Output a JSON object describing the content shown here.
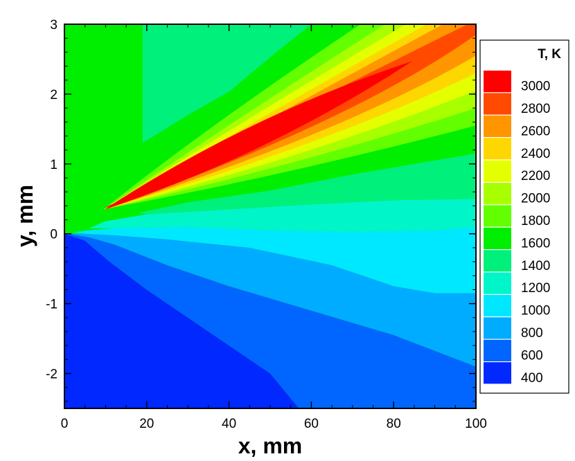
{
  "chart_data": {
    "type": "heatmap",
    "title": "",
    "xlabel": "x, mm",
    "ylabel": "y, mm",
    "xlim": [
      0,
      100
    ],
    "ylim": [
      -2.5,
      3
    ],
    "x_ticks": [
      0,
      20,
      40,
      60,
      80,
      100
    ],
    "x_tick_labels": [
      "0",
      "20",
      "40",
      "60",
      "80",
      "100"
    ],
    "y_ticks": [
      -2,
      -1,
      0,
      1,
      2,
      3
    ],
    "y_tick_labels": [
      "-2",
      "-1",
      "0",
      "1",
      "2",
      "3"
    ],
    "grid": false,
    "legend": {
      "title": "T, K",
      "placement": "right",
      "levels": [
        3000,
        2800,
        2600,
        2400,
        2200,
        2000,
        1800,
        1600,
        1400,
        1200,
        1000,
        800,
        600,
        400
      ],
      "labels": [
        "3000",
        "2800",
        "2600",
        "2400",
        "2200",
        "2000",
        "1800",
        "1600",
        "1400",
        "1200",
        "1000",
        "800",
        "600",
        "400"
      ],
      "colors": [
        "#ff0000",
        "#ff4a00",
        "#ff9600",
        "#ffd700",
        "#e4ff00",
        "#a8ff00",
        "#63ff00",
        "#00ee00",
        "#00f07c",
        "#00f5c9",
        "#00e8ff",
        "#00acff",
        "#0066ff",
        "#0028ff"
      ]
    },
    "regions": [
      {
        "level": 400,
        "polygon": [
          [
            0,
            -2.5
          ],
          [
            0,
            0
          ],
          [
            2,
            0
          ],
          [
            5,
            -0.1
          ],
          [
            11,
            -0.4
          ],
          [
            20,
            -0.8
          ],
          [
            35,
            -1.4
          ],
          [
            50,
            -2.0
          ],
          [
            57,
            -2.5
          ]
        ]
      },
      {
        "level": 600,
        "polygon": [
          [
            0,
            0
          ],
          [
            2,
            0
          ],
          [
            6,
            -0.05
          ],
          [
            12,
            -0.15
          ],
          [
            25,
            -0.45
          ],
          [
            40,
            -0.75
          ],
          [
            60,
            -1.1
          ],
          [
            80,
            -1.45
          ],
          [
            100,
            -1.9
          ],
          [
            100,
            -2.5
          ],
          [
            57,
            -2.5
          ],
          [
            50,
            -2.0
          ],
          [
            35,
            -1.4
          ],
          [
            20,
            -0.8
          ],
          [
            11,
            -0.4
          ],
          [
            5,
            -0.1
          ]
        ]
      },
      {
        "level": 800,
        "polygon": [
          [
            1,
            0
          ],
          [
            5,
            0.0
          ],
          [
            12,
            -0.02
          ],
          [
            25,
            -0.08
          ],
          [
            45,
            -0.2
          ],
          [
            65,
            -0.45
          ],
          [
            80,
            -0.75
          ],
          [
            90,
            -0.85
          ],
          [
            100,
            -0.85
          ],
          [
            100,
            -1.9
          ],
          [
            80,
            -1.45
          ],
          [
            60,
            -1.1
          ],
          [
            40,
            -0.75
          ],
          [
            25,
            -0.45
          ],
          [
            12,
            -0.15
          ],
          [
            6,
            -0.05
          ]
        ]
      },
      {
        "level": 1000,
        "polygon": [
          [
            2,
            0.02
          ],
          [
            6,
            0.05
          ],
          [
            12,
            0.08
          ],
          [
            30,
            0.1
          ],
          [
            50,
            0.05
          ],
          [
            70,
            0.03
          ],
          [
            90,
            0.05
          ],
          [
            100,
            0.1
          ],
          [
            100,
            -0.85
          ],
          [
            90,
            -0.85
          ],
          [
            80,
            -0.75
          ],
          [
            65,
            -0.45
          ],
          [
            45,
            -0.2
          ],
          [
            25,
            -0.08
          ],
          [
            12,
            -0.02
          ],
          [
            5,
            0
          ]
        ]
      },
      {
        "level": 1200,
        "polygon": [
          [
            6,
            0.08
          ],
          [
            10,
            0.18
          ],
          [
            20,
            0.28
          ],
          [
            40,
            0.35
          ],
          [
            60,
            0.42
          ],
          [
            80,
            0.48
          ],
          [
            100,
            0.5
          ],
          [
            100,
            0.1
          ],
          [
            90,
            0.05
          ],
          [
            70,
            0.03
          ],
          [
            50,
            0.05
          ],
          [
            30,
            0.1
          ],
          [
            12,
            0.08
          ]
        ]
      },
      {
        "level": 1400,
        "polygon": [
          [
            18,
            0.3
          ],
          [
            30,
            0.45
          ],
          [
            50,
            0.62
          ],
          [
            70,
            0.85
          ],
          [
            90,
            1.05
          ],
          [
            100,
            1.15
          ],
          [
            100,
            0.5
          ],
          [
            80,
            0.48
          ],
          [
            60,
            0.42
          ],
          [
            40,
            0.35
          ],
          [
            20,
            0.28
          ]
        ]
      }
    ],
    "bands": [
      {
        "level": 1600,
        "apex": [
          9.5,
          0.35
        ],
        "end_upper": [
          60,
          3.0
        ],
        "end_lower": [
          100,
          1.3
        ],
        "ctrl_upper": [
          30,
          1.6
        ],
        "ctrl_lower": [
          50,
          0.7
        ]
      },
      {
        "level": 1800,
        "apex": [
          9.5,
          0.35
        ],
        "end_upper": [
          72,
          3.0
        ],
        "end_lower": [
          100,
          1.55
        ],
        "ctrl_upper": [
          35,
          1.55
        ],
        "ctrl_lower": [
          55,
          0.85
        ]
      },
      {
        "level": 2000,
        "apex": [
          9.6,
          0.35
        ],
        "end_upper": [
          78,
          3.0
        ],
        "end_lower": [
          100,
          1.8
        ],
        "ctrl_upper": [
          38,
          1.5
        ],
        "ctrl_lower": [
          58,
          1.0
        ]
      },
      {
        "level": 2200,
        "apex": [
          9.7,
          0.35
        ],
        "end_upper": [
          83,
          3.0
        ],
        "end_lower": [
          100,
          2.05
        ],
        "ctrl_upper": [
          40,
          1.5
        ],
        "ctrl_lower": [
          62,
          1.15
        ]
      },
      {
        "level": 2400,
        "apex": [
          9.8,
          0.35
        ],
        "end_upper": [
          88,
          3.0
        ],
        "end_lower": [
          100,
          2.3
        ],
        "ctrl_upper": [
          42,
          1.48
        ],
        "ctrl_lower": [
          65,
          1.3
        ]
      },
      {
        "level": 2600,
        "apex": [
          9.9,
          0.35
        ],
        "end_upper": [
          92,
          3.0
        ],
        "end_lower": [
          100,
          2.55
        ],
        "ctrl_upper": [
          45,
          1.5
        ],
        "ctrl_lower": [
          68,
          1.45
        ]
      },
      {
        "level": 2800,
        "apex": [
          10.0,
          0.35
        ],
        "end_upper": [
          98,
          3.0
        ],
        "end_lower": [
          100,
          2.85
        ],
        "ctrl_upper": [
          48,
          1.55
        ],
        "ctrl_lower": [
          70,
          1.6
        ]
      }
    ],
    "plumes": [
      {
        "level": 3000,
        "apex": [
          9.8,
          0.35
        ],
        "tip": [
          84.5,
          2.47
        ],
        "width_mid": 0.32
      },
      {
        "level": 3000,
        "apex": [
          9.6,
          0.37
        ],
        "tip": [
          30,
          0.8
        ],
        "width_mid": 0.05
      }
    ],
    "secondary_regions": [
      {
        "level": 1400,
        "polygon": [
          [
            19,
            1.3
          ],
          [
            19,
            3.0
          ],
          [
            62,
            3.0
          ],
          [
            45,
            2.2
          ],
          [
            30,
            1.7
          ]
        ]
      }
    ]
  }
}
